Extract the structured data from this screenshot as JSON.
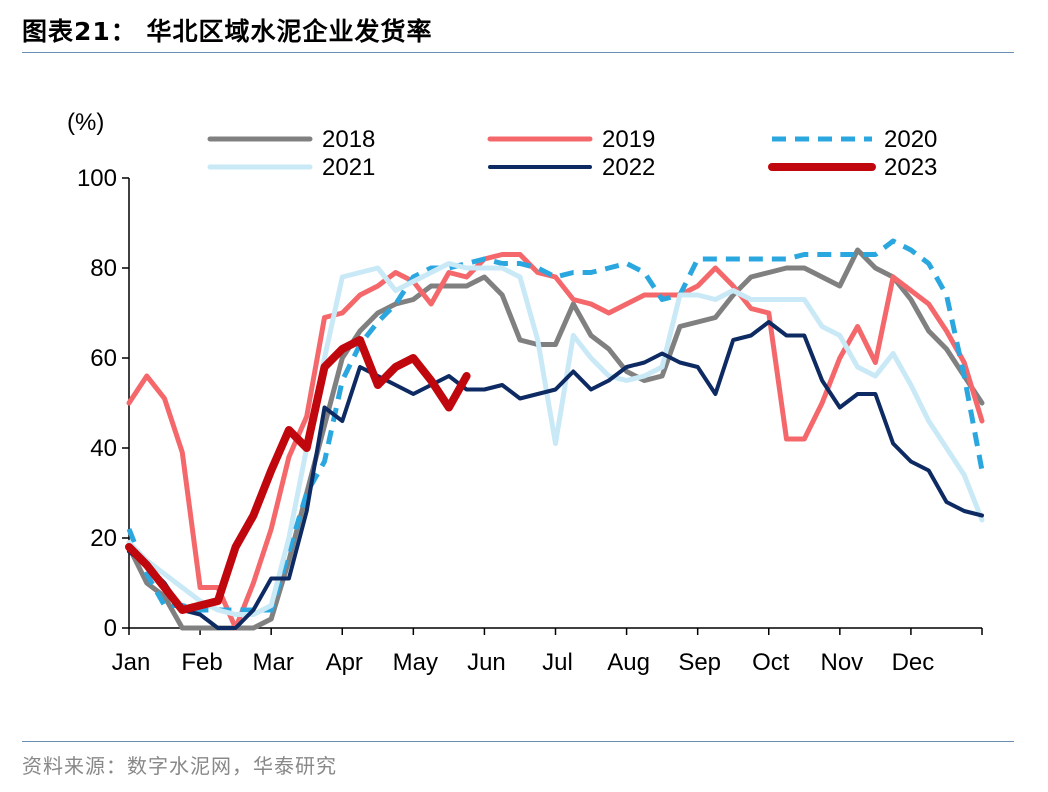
{
  "header": {
    "title": "图表21：  华北区域水泥企业发货率"
  },
  "footer": {
    "source": "资料来源：数字水泥网，华泰研究"
  },
  "chart_data": {
    "type": "line",
    "unit_label": "(%)",
    "title": "图表21：  华北区域水泥企业发货率",
    "xlabel": "",
    "ylabel": "(%)",
    "ylim": [
      0,
      100
    ],
    "yticks": [
      0,
      20,
      40,
      60,
      80,
      100
    ],
    "xlim": [
      0,
      12
    ],
    "month_labels": [
      "Jan",
      "Feb",
      "Mar",
      "Apr",
      "May",
      "Jun",
      "Jul",
      "Aug",
      "Sep",
      "Oct",
      "Nov",
      "Dec"
    ],
    "x_unit": "month (0 = start of Jan)",
    "legend_position": "top",
    "grid": false,
    "series": [
      {
        "name": "2018",
        "color": "#808080",
        "style": "solid",
        "width": 5,
        "points": [
          [
            0.0,
            18
          ],
          [
            0.25,
            10
          ],
          [
            0.5,
            7
          ],
          [
            0.75,
            0
          ],
          [
            1.0,
            0
          ],
          [
            1.25,
            0
          ],
          [
            1.5,
            0
          ],
          [
            1.75,
            0
          ],
          [
            2.0,
            2
          ],
          [
            2.25,
            15
          ],
          [
            2.5,
            30
          ],
          [
            2.75,
            45
          ],
          [
            3.0,
            60
          ],
          [
            3.25,
            66
          ],
          [
            3.5,
            70
          ],
          [
            3.75,
            72
          ],
          [
            4.0,
            73
          ],
          [
            4.25,
            76
          ],
          [
            4.5,
            76
          ],
          [
            4.75,
            76
          ],
          [
            5.0,
            78
          ],
          [
            5.25,
            74
          ],
          [
            5.5,
            64
          ],
          [
            5.75,
            63
          ],
          [
            6.0,
            63
          ],
          [
            6.25,
            72
          ],
          [
            6.5,
            65
          ],
          [
            6.75,
            62
          ],
          [
            7.0,
            57
          ],
          [
            7.25,
            55
          ],
          [
            7.5,
            56
          ],
          [
            7.75,
            67
          ],
          [
            8.0,
            68
          ],
          [
            8.25,
            69
          ],
          [
            8.5,
            74
          ],
          [
            8.75,
            78
          ],
          [
            9.0,
            79
          ],
          [
            9.25,
            80
          ],
          [
            9.5,
            80
          ],
          [
            9.75,
            78
          ],
          [
            10.0,
            76
          ],
          [
            10.25,
            84
          ],
          [
            10.5,
            80
          ],
          [
            10.75,
            78
          ],
          [
            11.0,
            73
          ],
          [
            11.25,
            66
          ],
          [
            11.5,
            62
          ],
          [
            11.75,
            56
          ],
          [
            12.0,
            50
          ]
        ]
      },
      {
        "name": "2019",
        "color": "#f4686b",
        "style": "solid",
        "width": 5,
        "points": [
          [
            0.0,
            50
          ],
          [
            0.25,
            56
          ],
          [
            0.5,
            51
          ],
          [
            0.75,
            39
          ],
          [
            1.0,
            9
          ],
          [
            1.25,
            9
          ],
          [
            1.5,
            0
          ],
          [
            1.75,
            10
          ],
          [
            2.0,
            22
          ],
          [
            2.25,
            38
          ],
          [
            2.5,
            47
          ],
          [
            2.75,
            69
          ],
          [
            3.0,
            70
          ],
          [
            3.25,
            74
          ],
          [
            3.5,
            76
          ],
          [
            3.75,
            79
          ],
          [
            4.0,
            77
          ],
          [
            4.25,
            72
          ],
          [
            4.5,
            79
          ],
          [
            4.75,
            78
          ],
          [
            5.0,
            82
          ],
          [
            5.25,
            83
          ],
          [
            5.5,
            83
          ],
          [
            5.75,
            79
          ],
          [
            6.0,
            78
          ],
          [
            6.25,
            73
          ],
          [
            6.5,
            72
          ],
          [
            6.75,
            70
          ],
          [
            7.0,
            72
          ],
          [
            7.25,
            74
          ],
          [
            7.5,
            74
          ],
          [
            7.75,
            74
          ],
          [
            8.0,
            76
          ],
          [
            8.25,
            80
          ],
          [
            8.5,
            76
          ],
          [
            8.75,
            71
          ],
          [
            9.0,
            70
          ],
          [
            9.25,
            42
          ],
          [
            9.5,
            42
          ],
          [
            9.75,
            50
          ],
          [
            10.0,
            60
          ],
          [
            10.25,
            67
          ],
          [
            10.5,
            59
          ],
          [
            10.75,
            78
          ],
          [
            11.0,
            75
          ],
          [
            11.25,
            72
          ],
          [
            11.5,
            66
          ],
          [
            11.75,
            59
          ],
          [
            12.0,
            46
          ]
        ]
      },
      {
        "name": "2020",
        "color": "#2ba7e0",
        "style": "dashed",
        "width": 5,
        "points": [
          [
            0.0,
            22
          ],
          [
            0.25,
            12
          ],
          [
            0.5,
            5
          ],
          [
            0.75,
            5
          ],
          [
            1.0,
            4
          ],
          [
            1.25,
            4
          ],
          [
            1.5,
            4
          ],
          [
            1.75,
            4
          ],
          [
            2.0,
            4
          ],
          [
            2.25,
            17
          ],
          [
            2.5,
            30
          ],
          [
            2.75,
            37
          ],
          [
            3.0,
            55
          ],
          [
            3.25,
            63
          ],
          [
            3.5,
            68
          ],
          [
            3.75,
            72
          ],
          [
            4.0,
            78
          ],
          [
            4.25,
            80
          ],
          [
            4.5,
            80
          ],
          [
            4.75,
            81
          ],
          [
            5.0,
            82
          ],
          [
            5.25,
            81
          ],
          [
            5.5,
            81
          ],
          [
            5.75,
            80
          ],
          [
            6.0,
            78
          ],
          [
            6.25,
            79
          ],
          [
            6.5,
            79
          ],
          [
            6.75,
            80
          ],
          [
            7.0,
            81
          ],
          [
            7.25,
            79
          ],
          [
            7.5,
            73
          ],
          [
            7.75,
            74
          ],
          [
            8.0,
            82
          ],
          [
            8.25,
            82
          ],
          [
            8.5,
            82
          ],
          [
            8.75,
            82
          ],
          [
            9.0,
            82
          ],
          [
            9.25,
            82
          ],
          [
            9.5,
            83
          ],
          [
            9.75,
            83
          ],
          [
            10.0,
            83
          ],
          [
            10.25,
            83
          ],
          [
            10.5,
            83
          ],
          [
            10.75,
            86
          ],
          [
            11.0,
            84
          ],
          [
            11.25,
            81
          ],
          [
            11.5,
            74
          ],
          [
            11.75,
            56
          ],
          [
            12.0,
            35
          ]
        ]
      },
      {
        "name": "2021",
        "color": "#c9e9f7",
        "style": "solid",
        "width": 5,
        "points": [
          [
            0.0,
            19
          ],
          [
            0.25,
            15
          ],
          [
            0.5,
            12
          ],
          [
            0.75,
            9
          ],
          [
            1.0,
            6
          ],
          [
            1.25,
            4
          ],
          [
            1.5,
            3
          ],
          [
            1.75,
            3
          ],
          [
            2.0,
            5
          ],
          [
            2.25,
            20
          ],
          [
            2.5,
            40
          ],
          [
            2.75,
            60
          ],
          [
            3.0,
            78
          ],
          [
            3.25,
            79
          ],
          [
            3.5,
            80
          ],
          [
            3.75,
            75
          ],
          [
            4.0,
            77
          ],
          [
            4.25,
            79
          ],
          [
            4.5,
            81
          ],
          [
            4.75,
            80
          ],
          [
            5.0,
            80
          ],
          [
            5.25,
            80
          ],
          [
            5.5,
            78
          ],
          [
            5.75,
            64
          ],
          [
            6.0,
            41
          ],
          [
            6.25,
            65
          ],
          [
            6.5,
            60
          ],
          [
            6.75,
            56
          ],
          [
            7.0,
            55
          ],
          [
            7.25,
            56
          ],
          [
            7.5,
            58
          ],
          [
            7.75,
            74
          ],
          [
            8.0,
            74
          ],
          [
            8.25,
            73
          ],
          [
            8.5,
            75
          ],
          [
            8.75,
            73
          ],
          [
            9.0,
            73
          ],
          [
            9.25,
            73
          ],
          [
            9.5,
            73
          ],
          [
            9.75,
            67
          ],
          [
            10.0,
            65
          ],
          [
            10.25,
            58
          ],
          [
            10.5,
            56
          ],
          [
            10.75,
            61
          ],
          [
            11.0,
            54
          ],
          [
            11.25,
            46
          ],
          [
            11.5,
            40
          ],
          [
            11.75,
            34
          ],
          [
            12.0,
            24
          ]
        ]
      },
      {
        "name": "2022",
        "color": "#0d2a63",
        "style": "solid",
        "width": 4,
        "points": [
          [
            0.0,
            17
          ],
          [
            0.25,
            14
          ],
          [
            0.5,
            10
          ],
          [
            0.75,
            4
          ],
          [
            1.0,
            3
          ],
          [
            1.25,
            0
          ],
          [
            1.5,
            0
          ],
          [
            1.75,
            4
          ],
          [
            2.0,
            11
          ],
          [
            2.25,
            11
          ],
          [
            2.5,
            26
          ],
          [
            2.75,
            49
          ],
          [
            3.0,
            46
          ],
          [
            3.25,
            58
          ],
          [
            3.5,
            56
          ],
          [
            3.75,
            54
          ],
          [
            4.0,
            52
          ],
          [
            4.25,
            54
          ],
          [
            4.5,
            56
          ],
          [
            4.75,
            53
          ],
          [
            5.0,
            53
          ],
          [
            5.25,
            54
          ],
          [
            5.5,
            51
          ],
          [
            5.75,
            52
          ],
          [
            6.0,
            53
          ],
          [
            6.25,
            57
          ],
          [
            6.5,
            53
          ],
          [
            6.75,
            55
          ],
          [
            7.0,
            58
          ],
          [
            7.25,
            59
          ],
          [
            7.5,
            61
          ],
          [
            7.75,
            59
          ],
          [
            8.0,
            58
          ],
          [
            8.25,
            52
          ],
          [
            8.5,
            64
          ],
          [
            8.75,
            65
          ],
          [
            9.0,
            68
          ],
          [
            9.25,
            65
          ],
          [
            9.5,
            65
          ],
          [
            9.75,
            55
          ],
          [
            10.0,
            49
          ],
          [
            10.25,
            52
          ],
          [
            10.5,
            52
          ],
          [
            10.75,
            41
          ],
          [
            11.0,
            37
          ],
          [
            11.25,
            35
          ],
          [
            11.5,
            28
          ],
          [
            11.75,
            26
          ],
          [
            12.0,
            25
          ]
        ]
      },
      {
        "name": "2023",
        "color": "#c0070d",
        "style": "solid",
        "width": 8,
        "points": [
          [
            0.0,
            18
          ],
          [
            0.25,
            14
          ],
          [
            0.5,
            9
          ],
          [
            0.75,
            4
          ],
          [
            1.0,
            5
          ],
          [
            1.25,
            6
          ],
          [
            1.5,
            18
          ],
          [
            1.75,
            25
          ],
          [
            2.0,
            35
          ],
          [
            2.25,
            44
          ],
          [
            2.5,
            40
          ],
          [
            2.75,
            58
          ],
          [
            3.0,
            62
          ],
          [
            3.25,
            64
          ],
          [
            3.5,
            54
          ],
          [
            3.75,
            58
          ],
          [
            4.0,
            60
          ],
          [
            4.25,
            55
          ],
          [
            4.5,
            49
          ],
          [
            4.75,
            56
          ]
        ]
      }
    ]
  }
}
